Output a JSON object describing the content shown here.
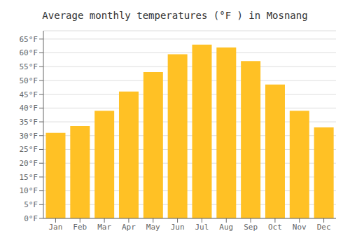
{
  "chart_data": {
    "type": "bar",
    "title": "Average monthly temperatures (°F ) in Mosnang",
    "categories": [
      "Jan",
      "Feb",
      "Mar",
      "Apr",
      "May",
      "Jun",
      "Jul",
      "Aug",
      "Sep",
      "Oct",
      "Nov",
      "Dec"
    ],
    "values": [
      31,
      33.5,
      39,
      46,
      53,
      59.5,
      63,
      62,
      57,
      48.5,
      39,
      33
    ],
    "color": "#FFC125",
    "ylim": [
      0,
      68
    ],
    "yticks": [
      {
        "value": 0,
        "label": "0°F"
      },
      {
        "value": 5,
        "label": "5°F"
      },
      {
        "value": 10,
        "label": "10°F"
      },
      {
        "value": 15,
        "label": "15°F"
      },
      {
        "value": 20,
        "label": "20°F"
      },
      {
        "value": 25,
        "label": "25°F"
      },
      {
        "value": 30,
        "label": "30°F"
      },
      {
        "value": 35,
        "label": "35°F"
      },
      {
        "value": 40,
        "label": "40°F"
      },
      {
        "value": 45,
        "label": "45°F"
      },
      {
        "value": 50,
        "label": "50°F"
      },
      {
        "value": 55,
        "label": "55°F"
      },
      {
        "value": 60,
        "label": "60°F"
      },
      {
        "value": 65,
        "label": "65°F"
      }
    ],
    "grid": true
  }
}
